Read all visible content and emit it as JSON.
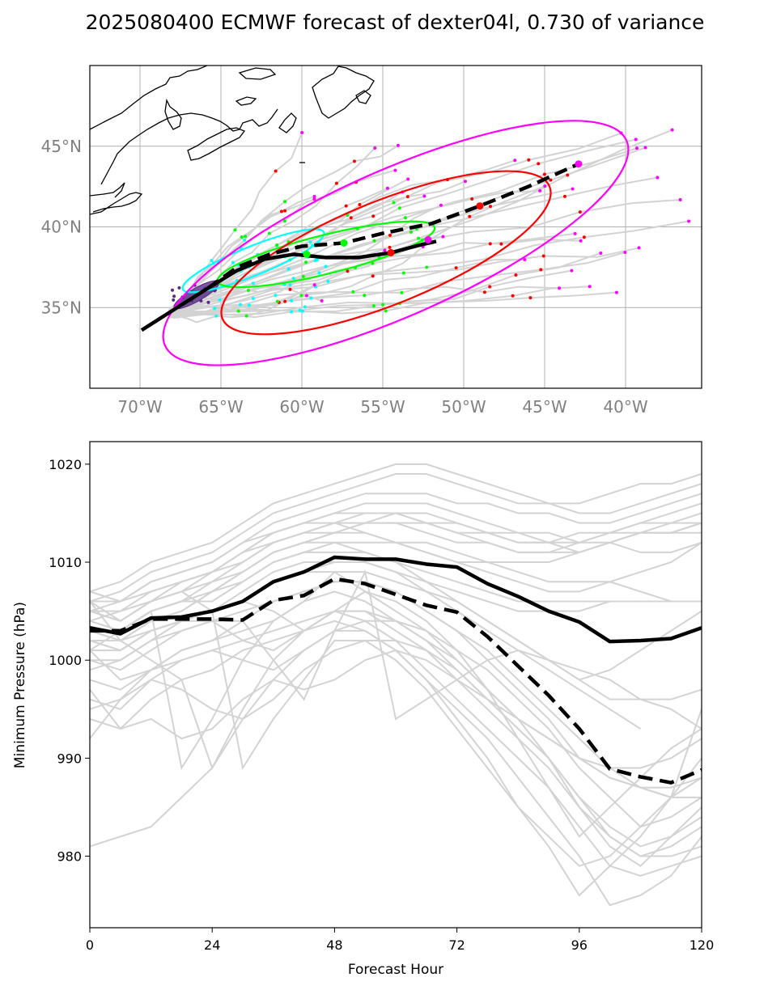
{
  "title": "2025080400 ECMWF forecast of dexter04l, 0.730 of variance",
  "colors": {
    "ensemble": "#d3d3d3",
    "mean": "#000000",
    "ellipse_24h": "#00ffff",
    "ellipse_48h": "#00ff00",
    "ellipse_72h": "#ff0000",
    "ellipse_96h": "#ff00ff",
    "ellipse_0h": "#5b2a86",
    "coast": "#000000",
    "grid": "#b0b0b0"
  },
  "chart_data": [
    {
      "type": "line",
      "kind": "map",
      "lon_range": [
        -73.1,
        -35.3
      ],
      "lat_range": [
        30,
        50
      ],
      "grid": true,
      "x_tick_labels": [
        "70°W",
        "65°W",
        "60°W",
        "55°W",
        "50°W",
        "45°W",
        "40°W"
      ],
      "x_ticks": [
        -70,
        -65,
        -60,
        -55,
        -50,
        -45,
        -40
      ],
      "y_tick_labels": [
        "35°N",
        "40°N",
        "45°N"
      ],
      "y_ticks": [
        35,
        40,
        45
      ],
      "mean_track_solid": {
        "lon": [
          -69.9,
          -67.7,
          -65.8,
          -64.0,
          -62.3,
          -60.5,
          -58.5,
          -56.5,
          -54.5,
          -52.6,
          -51.7
        ],
        "lat": [
          33.6,
          35.0,
          36.2,
          37.3,
          38.0,
          38.3,
          38.1,
          38.1,
          38.4,
          38.9,
          39.1
        ]
      },
      "mean_track_dashed": {
        "lon": [
          -65.8,
          -64.0,
          -62.0,
          -60.0,
          -57.4,
          -55.0,
          -52.0,
          -49.0,
          -46.0,
          -42.9
        ],
        "lat": [
          36.2,
          37.5,
          38.3,
          38.8,
          39.0,
          39.6,
          40.2,
          41.3,
          42.5,
          43.9
        ]
      },
      "ellipses": [
        {
          "hour": 0,
          "center": [
            -66.5,
            35.8
          ],
          "semi_major_deg": 1.6,
          "semi_minor_deg": 0.4,
          "angle_deg": 30
        },
        {
          "hour": 24,
          "center": [
            -63.0,
            37.9
          ],
          "semi_major_deg": 4.7,
          "semi_minor_deg": 0.9,
          "angle_deg": 22
        },
        {
          "hour": 48,
          "center": [
            -58.5,
            38.3
          ],
          "semi_major_deg": 6.9,
          "semi_minor_deg": 1.2,
          "angle_deg": 14
        },
        {
          "hour": 72,
          "center": [
            -54.8,
            38.4
          ],
          "semi_major_deg": 10.9,
          "semi_minor_deg": 3.2,
          "angle_deg": 22
        },
        {
          "hour": 96,
          "center": [
            -54.2,
            39.0
          ],
          "semi_major_deg": 15.6,
          "semi_minor_deg": 4.5,
          "angle_deg": 24
        }
      ],
      "mean_markers": [
        {
          "lon": -57.4,
          "lat": 39.0,
          "hour": 48
        },
        {
          "lon": -59.7,
          "lat": 38.3,
          "hour": 48
        },
        {
          "lon": -54.5,
          "lat": 38.4,
          "hour": 72
        },
        {
          "lon": -49.0,
          "lat": 41.3,
          "hour": 72
        },
        {
          "lon": -52.2,
          "lat": 39.2,
          "hour": 96
        },
        {
          "lon": -42.9,
          "lat": 43.9,
          "hour": 96
        }
      ]
    },
    {
      "type": "line",
      "kind": "pressure",
      "xlabel": "Forecast Hour",
      "ylabel": "Minimum Pressure (hPa)",
      "xlim": [
        0,
        120
      ],
      "ylim": [
        972.7,
        1022.3
      ],
      "x_ticks": [
        0,
        24,
        48,
        72,
        96,
        120
      ],
      "y_ticks": [
        980,
        990,
        1000,
        1010,
        1020
      ],
      "x": [
        0,
        6,
        12,
        18,
        24,
        30,
        36,
        42,
        48,
        54,
        60,
        66,
        72,
        78,
        84,
        90,
        96,
        102,
        108,
        114,
        120
      ],
      "series": [
        {
          "style": "mean-solid",
          "values": [
            1003.3,
            1002.7,
            1004.3,
            1004.4,
            1005.0,
            1006.0,
            1008.0,
            1009.0,
            1010.5,
            1010.3,
            1010.3,
            1009.8,
            1009.5,
            1007.8,
            1006.5,
            1005.0,
            1003.9,
            1001.9,
            1002.0,
            1002.2,
            1003.3
          ]
        },
        {
          "style": "mean-dashed",
          "values": [
            1003.0,
            1003.0,
            1004.2,
            1004.2,
            1004.2,
            1004.1,
            1006.1,
            1006.6,
            1008.3,
            1007.8,
            1006.7,
            1005.6,
            1004.9,
            1002.4,
            999.4,
            996.4,
            993.0,
            988.9,
            988.1,
            987.5,
            988.8
          ]
        }
      ],
      "members": [
        [
          1007,
          1008,
          1010,
          1011,
          1012,
          1014,
          1016,
          1017,
          1018,
          1019,
          1020,
          1020,
          1019,
          1018,
          1017,
          1016,
          1015,
          1015,
          1016,
          1017,
          1018
        ],
        [
          1006,
          1007,
          1009,
          1010,
          1011,
          1013,
          1015,
          1016,
          1017,
          1018,
          1019,
          1019,
          1018,
          1017,
          1016,
          1016,
          1016,
          1017,
          1018,
          1018,
          1019
        ],
        [
          1005,
          1006,
          1008,
          1009,
          1010,
          1012,
          1014,
          1015,
          1016,
          1017,
          1017,
          1017,
          1016,
          1016,
          1015,
          1015,
          1014,
          1014,
          1015,
          1016,
          1017
        ],
        [
          1004,
          1005,
          1007,
          1008,
          1009,
          1011,
          1013,
          1014,
          1015,
          1016,
          1016,
          1016,
          1015,
          1014,
          1013,
          1012,
          1012,
          1013,
          1014,
          1015,
          1016
        ],
        [
          1006,
          1004,
          1006,
          1007,
          1008,
          1010,
          1012,
          1013,
          1014,
          1015,
          1015,
          1015,
          1014,
          1013,
          1012,
          1012,
          1011,
          1012,
          1013,
          1014,
          1015
        ],
        [
          1003,
          1003,
          1005,
          1006,
          1007,
          1009,
          1011,
          1012,
          1013,
          1014,
          1014,
          1014,
          1013,
          1013,
          1012,
          1012,
          1013,
          1013,
          1013,
          1013,
          1014
        ],
        [
          1005,
          1005,
          1006,
          1007,
          1009,
          1011,
          1012,
          1013,
          1014,
          1014,
          1015,
          1014,
          1014,
          1013,
          1013,
          1013,
          1012,
          1012,
          1011,
          1011,
          1012
        ],
        [
          1007,
          1006,
          1007,
          1008,
          1009,
          1010,
          1012,
          1013,
          1013,
          1014,
          1014,
          1013,
          1012,
          1012,
          1011,
          1011,
          1012,
          1013,
          1014,
          1014,
          1014
        ],
        [
          1002,
          1002,
          1004,
          1005,
          1007,
          1008,
          1010,
          1011,
          1012,
          1012,
          1012,
          1012,
          1011,
          1010,
          1009,
          1008,
          1008,
          1008,
          1007,
          1006,
          1006
        ],
        [
          1004,
          1003,
          1005,
          1006,
          1006,
          1008,
          1010,
          1011,
          1011,
          1011,
          1010,
          1009,
          1008,
          1007,
          1006,
          1006,
          1006,
          1006,
          1006,
          1006,
          1006
        ],
        [
          1001,
          1001,
          1003,
          1004,
          1005,
          1006,
          1008,
          1009,
          1009,
          1009,
          1008,
          1007,
          1006,
          1004,
          1002,
          1000,
          998,
          999,
          1001,
          1003,
          1005
        ],
        [
          1000,
          999,
          1001,
          1003,
          1004,
          1005,
          1006,
          1007,
          1008,
          1008,
          1007,
          1005,
          1003,
          1000,
          997,
          994,
          990,
          988,
          987,
          987,
          988
        ],
        [
          998,
          997,
          999,
          1001,
          1002,
          1003,
          1004,
          1006,
          1007,
          1006,
          1004,
          1002,
          999,
          996,
          993,
          990,
          986,
          982,
          980,
          980,
          981
        ],
        [
          996,
          995,
          998,
          1000,
          1001,
          1002,
          1003,
          1004,
          1005,
          1004,
          1002,
          999,
          996,
          993,
          990,
          987,
          983,
          979,
          978,
          979,
          980
        ],
        [
          994,
          993,
          996,
          998,
          999,
          1001,
          1002,
          1003,
          1004,
          1003,
          1001,
          998,
          995,
          992,
          988,
          984,
          980,
          975,
          976,
          978,
          982
        ],
        [
          999,
          1000,
          1002,
          1003,
          1004,
          1002,
          1001,
          1003,
          1005,
          1005,
          1004,
          1002,
          1000,
          997,
          994,
          990,
          985,
          981,
          979,
          982,
          984
        ],
        [
          1001,
          998,
          999,
          1000,
          1001,
          1000,
          999,
          1001,
          1003,
          1004,
          1004,
          1003,
          1001,
          999,
          996,
          993,
          989,
          986,
          983,
          984,
          986
        ],
        [
          997,
          993,
          994,
          992,
          993,
          996,
          998,
          997,
          998,
          1000,
          1001,
          1000,
          998,
          996,
          994,
          992,
          990,
          988,
          987,
          986,
          988
        ],
        [
          992,
          996,
          998,
          997,
          995,
          994,
          996,
          999,
          1001,
          1002,
          1002,
          1001,
          999,
          996,
          993,
          990,
          986,
          983,
          981,
          982,
          985
        ],
        [
          1001,
          1003,
          1005,
          989,
          994,
          1000,
          1004,
          1006,
          1009,
          1007,
          1005,
          1003,
          1000,
          997,
          994,
          992,
          990,
          989,
          989,
          990,
          992
        ],
        [
          1006,
          1002,
          1000,
          998,
          989,
          994,
          998,
          1001,
          1003,
          1003,
          1001,
          998,
          994,
          990,
          985,
          981,
          976,
          979,
          982,
          986,
          995
        ],
        [
          1005,
          1004,
          1006,
          1007,
          1005,
          989,
          994,
          998,
          1002,
          1002,
          1000,
          997,
          993,
          989,
          985,
          982,
          979,
          980,
          983,
          986,
          990
        ],
        [
          1003,
          1002,
          1003,
          1004,
          1004,
          1004,
          1000,
          996,
          1003,
          1009,
          994,
          996,
          998,
          1000,
          1001,
          1000,
          999,
          998,
          996,
          995,
          993
        ],
        [
          1002,
          1001,
          1003,
          1004,
          1005,
          1006,
          1005,
          1003,
          1005,
          1007,
          1006,
          1004,
          1001,
          997,
          992,
          987,
          982,
          985,
          988,
          991,
          993
        ],
        [
          981,
          982,
          983,
          986,
          989,
          995,
          1000,
          1003,
          1005,
          1005,
          1003,
          1001,
          998,
          995,
          992,
          989,
          985,
          982,
          980,
          981,
          983
        ],
        [
          1004,
          1003,
          1005,
          1006,
          1008,
          1009,
          1011,
          1012,
          1012,
          1011,
          1010,
          1008,
          1007,
          1006,
          1005,
          1005,
          1005,
          1006,
          1006,
          null,
          null
        ],
        [
          1002,
          1001,
          1003,
          1004,
          1005,
          1006,
          1008,
          1009,
          1010,
          1010,
          1009,
          1007,
          1005,
          1003,
          1001,
          999,
          997,
          995,
          993,
          null,
          null
        ],
        [
          1005,
          1004,
          1006,
          1008,
          1009,
          1011,
          1013,
          1014,
          1014,
          1013,
          1012,
          1011,
          1010,
          1010,
          1010,
          1010,
          1011,
          1012,
          1013,
          1013,
          1013
        ],
        [
          1003,
          1002,
          1004,
          1005,
          1007,
          1009,
          1011,
          1012,
          1013,
          1013,
          1012,
          1011,
          1010,
          1009,
          1008,
          1007,
          1007,
          1008,
          1009,
          1010,
          1012
        ],
        [
          1000,
          1000,
          1002,
          1004,
          1005,
          1007,
          1009,
          1010,
          1010,
          1010,
          1009,
          1008,
          1006,
          1004,
          1002,
          1000,
          998,
          996,
          996,
          996,
          997
        ],
        [
          995,
          996,
          999,
          1001,
          1002,
          1004,
          1006,
          1007,
          1008,
          1008,
          1007,
          1005,
          1003,
          1001,
          998,
          995,
          992,
          989,
          987,
          986,
          986
        ],
        [
          1006,
          1006,
          1008,
          1009,
          1010,
          1012,
          1013,
          1014,
          1015,
          1015,
          1015,
          1014,
          1013,
          1012,
          1011,
          1011,
          1011,
          1012,
          1013,
          1013,
          1014
        ]
      ]
    }
  ]
}
